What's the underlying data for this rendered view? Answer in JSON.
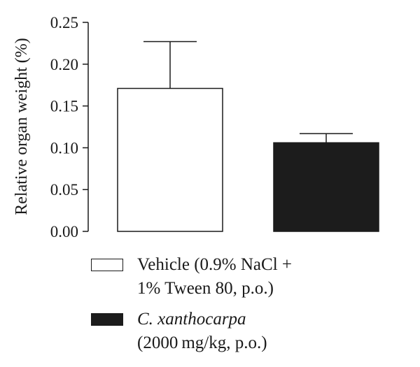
{
  "chart_data": {
    "type": "bar",
    "ylabel": "Relative organ weight (%)",
    "xlabel": "",
    "ylim": [
      0,
      0.25
    ],
    "yticks": [
      "0.00",
      "0.05",
      "0.10",
      "0.15",
      "0.20",
      "0.25"
    ],
    "grid": false,
    "legend_position": "bottom",
    "series": [
      {
        "value": 0.171,
        "error": 0.056,
        "color": "#ffffff"
      },
      {
        "value": 0.106,
        "error": 0.011,
        "color": "#1c1c1c"
      }
    ],
    "legend": [
      {
        "line1": "Vehicle (0.9% NaCl +",
        "line1_rest": "",
        "line2": "1% Tween 80, p.o.)",
        "color": "#ffffff"
      },
      {
        "line1": "C. xanthocarpa",
        "line1_rest": "",
        "line2": "(2000 mg/kg, p.o.)",
        "color": "#1c1c1c"
      }
    ]
  }
}
